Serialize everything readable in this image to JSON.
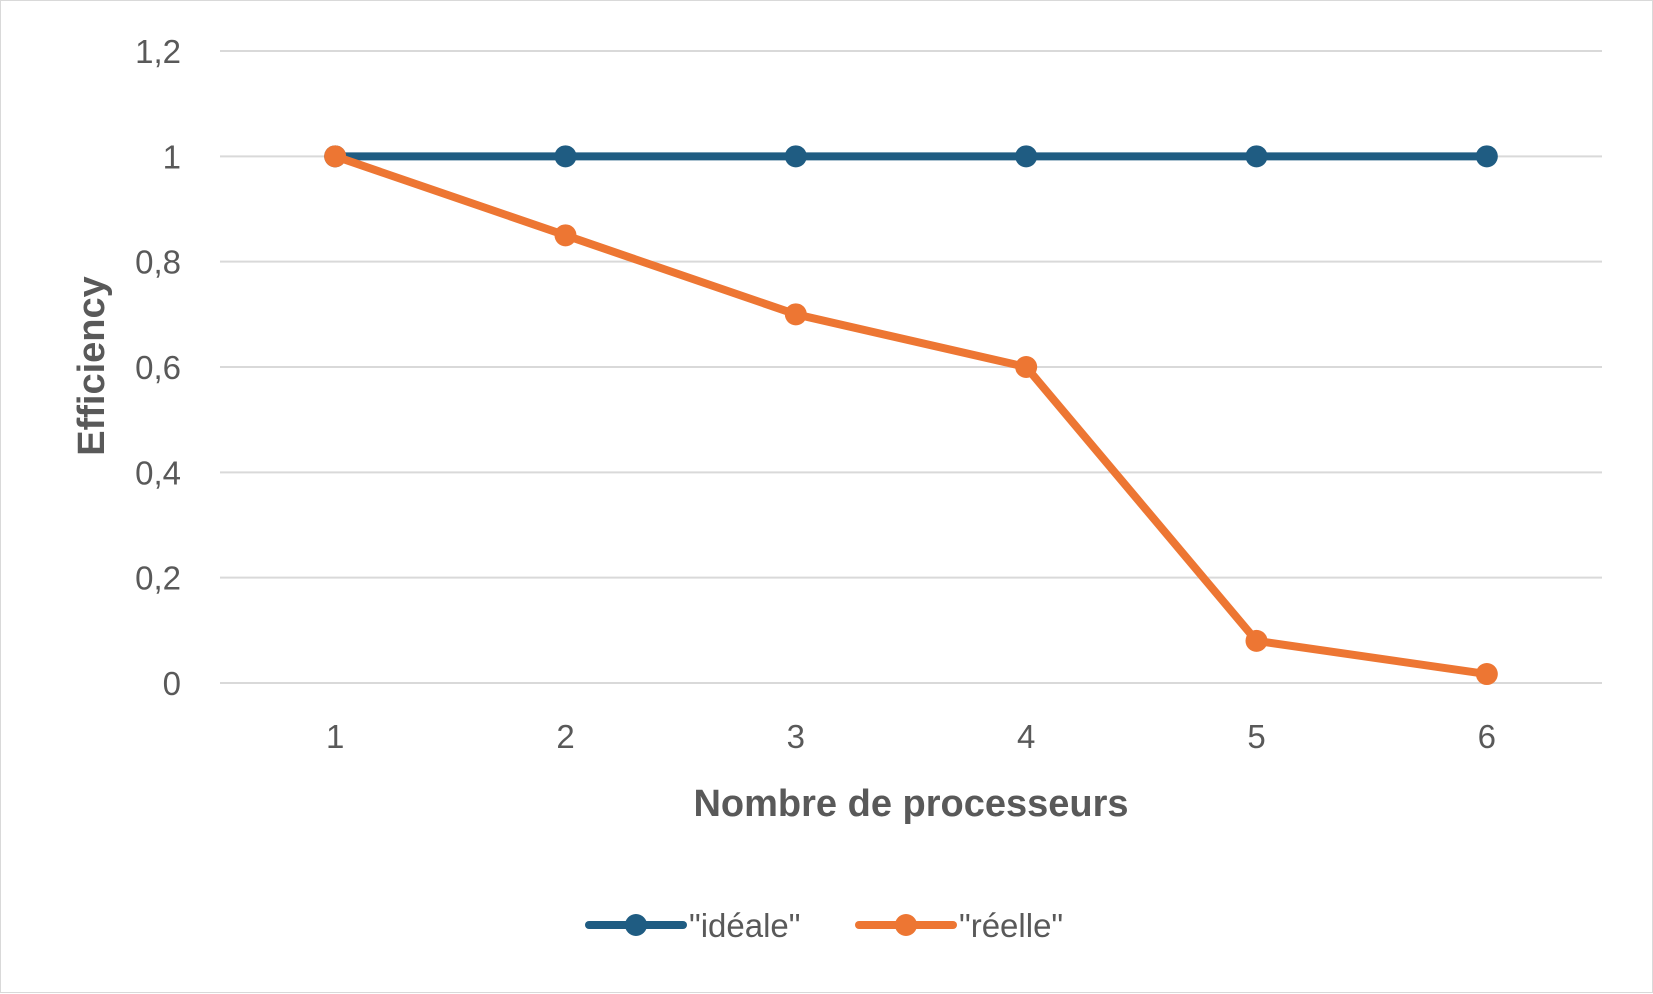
{
  "chart_data": {
    "type": "line",
    "categories": [
      "1",
      "2",
      "3",
      "4",
      "5",
      "6"
    ],
    "series": [
      {
        "name": "\"idéale\"",
        "color": "#1f5c82",
        "values": [
          1,
          1,
          1,
          1,
          1,
          1
        ]
      },
      {
        "name": "\"réelle\"",
        "color": "#ed7633",
        "values": [
          1,
          0.85,
          0.7,
          0.6,
          0.08,
          0.017
        ]
      }
    ],
    "title": "",
    "xlabel": "Nombre de processeurs",
    "ylabel": "Efficiency",
    "ylim": [
      0,
      1.2
    ],
    "yticks": [
      "0",
      "0,2",
      "0,4",
      "0,6",
      "0,8",
      "1",
      "1,2"
    ],
    "grid": true,
    "legend_position": "bottom"
  }
}
